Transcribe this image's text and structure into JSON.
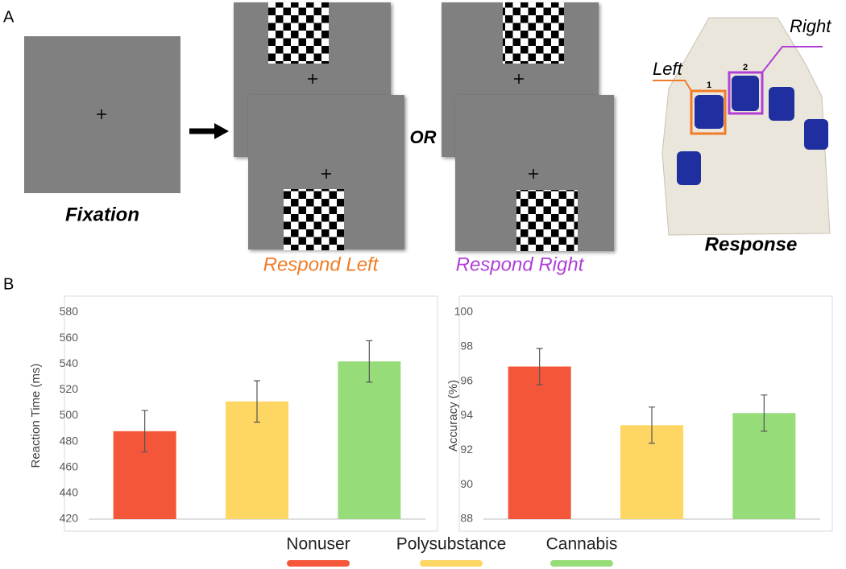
{
  "panel_labels": [
    "A",
    "B"
  ],
  "diagram": {
    "fixation_label": "Fixation",
    "connector": "OR",
    "respond_left": "Respond Left",
    "respond_right": "Respond Right",
    "response_label": "Response",
    "left_label": "Left",
    "right_label": "Right",
    "button_numbers": [
      "1",
      "2"
    ]
  },
  "legend": [
    {
      "name": "Nonuser",
      "color": "#f4563a"
    },
    {
      "name": "Polysubstance",
      "color": "#fdd663"
    },
    {
      "name": "Cannabis",
      "color": "#96dd7a"
    }
  ],
  "chart_data": [
    {
      "type": "bar",
      "ylabel": "Reaction Time (ms)",
      "categories": [
        null,
        null,
        null
      ],
      "values": [
        488,
        511,
        542
      ],
      "errors": [
        16,
        16,
        16
      ],
      "colors": [
        "#f4563a",
        "#fdd663",
        "#96dd7a"
      ],
      "ylim": [
        420,
        580
      ],
      "yticks": [
        420,
        440,
        460,
        480,
        500,
        520,
        540,
        560,
        580
      ]
    },
    {
      "type": "bar",
      "ylabel": "Accuracy (%)",
      "categories": [
        null,
        null,
        null
      ],
      "values": [
        96.85,
        93.45,
        94.15
      ],
      "errors": [
        1.05,
        1.05,
        1.05
      ],
      "colors": [
        "#f4563a",
        "#fdd663",
        "#96dd7a"
      ],
      "ylim": [
        88,
        100
      ],
      "yticks": [
        88,
        90,
        92,
        94,
        96,
        98,
        100
      ]
    }
  ]
}
